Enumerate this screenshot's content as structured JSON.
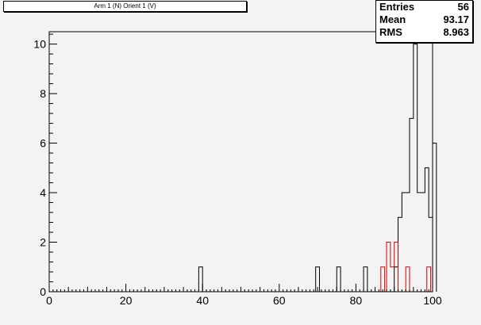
{
  "chart_data": {
    "type": "histogram",
    "title": "Arm 1 (N) Orient 1 (V)",
    "stats": [
      {
        "label": "Entries",
        "value": "56"
      },
      {
        "label": "Mean",
        "value": "93.17"
      },
      {
        "label": "RMS",
        "value": "8.963"
      }
    ],
    "xlim": [
      0,
      100
    ],
    "ylim": [
      0,
      10.5
    ],
    "x_ticks": [
      0,
      20,
      40,
      60,
      80,
      100
    ],
    "y_ticks": [
      0,
      2,
      4,
      6,
      8,
      10
    ],
    "series": [
      {
        "color": "#000000",
        "bins": [
          {
            "x": 39,
            "width": 1,
            "value": 1
          },
          {
            "x": 69.5,
            "width": 1,
            "value": 1
          },
          {
            "x": 75,
            "width": 1,
            "value": 1
          },
          {
            "x": 82,
            "width": 1,
            "value": 1
          },
          {
            "x": 90,
            "width": 1,
            "value": 1
          },
          {
            "x": 91,
            "width": 1,
            "value": 3
          },
          {
            "x": 92,
            "width": 1,
            "value": 4
          },
          {
            "x": 93,
            "width": 1,
            "value": 4
          },
          {
            "x": 94,
            "width": 1,
            "value": 7
          },
          {
            "x": 95,
            "width": 1,
            "value": 10
          },
          {
            "x": 96,
            "width": 1,
            "value": 4
          },
          {
            "x": 97,
            "width": 1,
            "value": 4
          },
          {
            "x": 98,
            "width": 1,
            "value": 5
          },
          {
            "x": 99,
            "width": 1,
            "value": 3
          },
          {
            "x": 100,
            "width": 1,
            "value": 6
          }
        ]
      },
      {
        "color": "#d40000",
        "bins": [
          {
            "x": 86.5,
            "width": 1,
            "value": 1
          },
          {
            "x": 88,
            "width": 1,
            "value": 2
          },
          {
            "x": 89,
            "width": 1,
            "value": 1
          },
          {
            "x": 90,
            "width": 1,
            "value": 2
          },
          {
            "x": 93,
            "width": 1,
            "value": 1
          },
          {
            "x": 98.5,
            "width": 1,
            "value": 1
          }
        ]
      }
    ]
  }
}
